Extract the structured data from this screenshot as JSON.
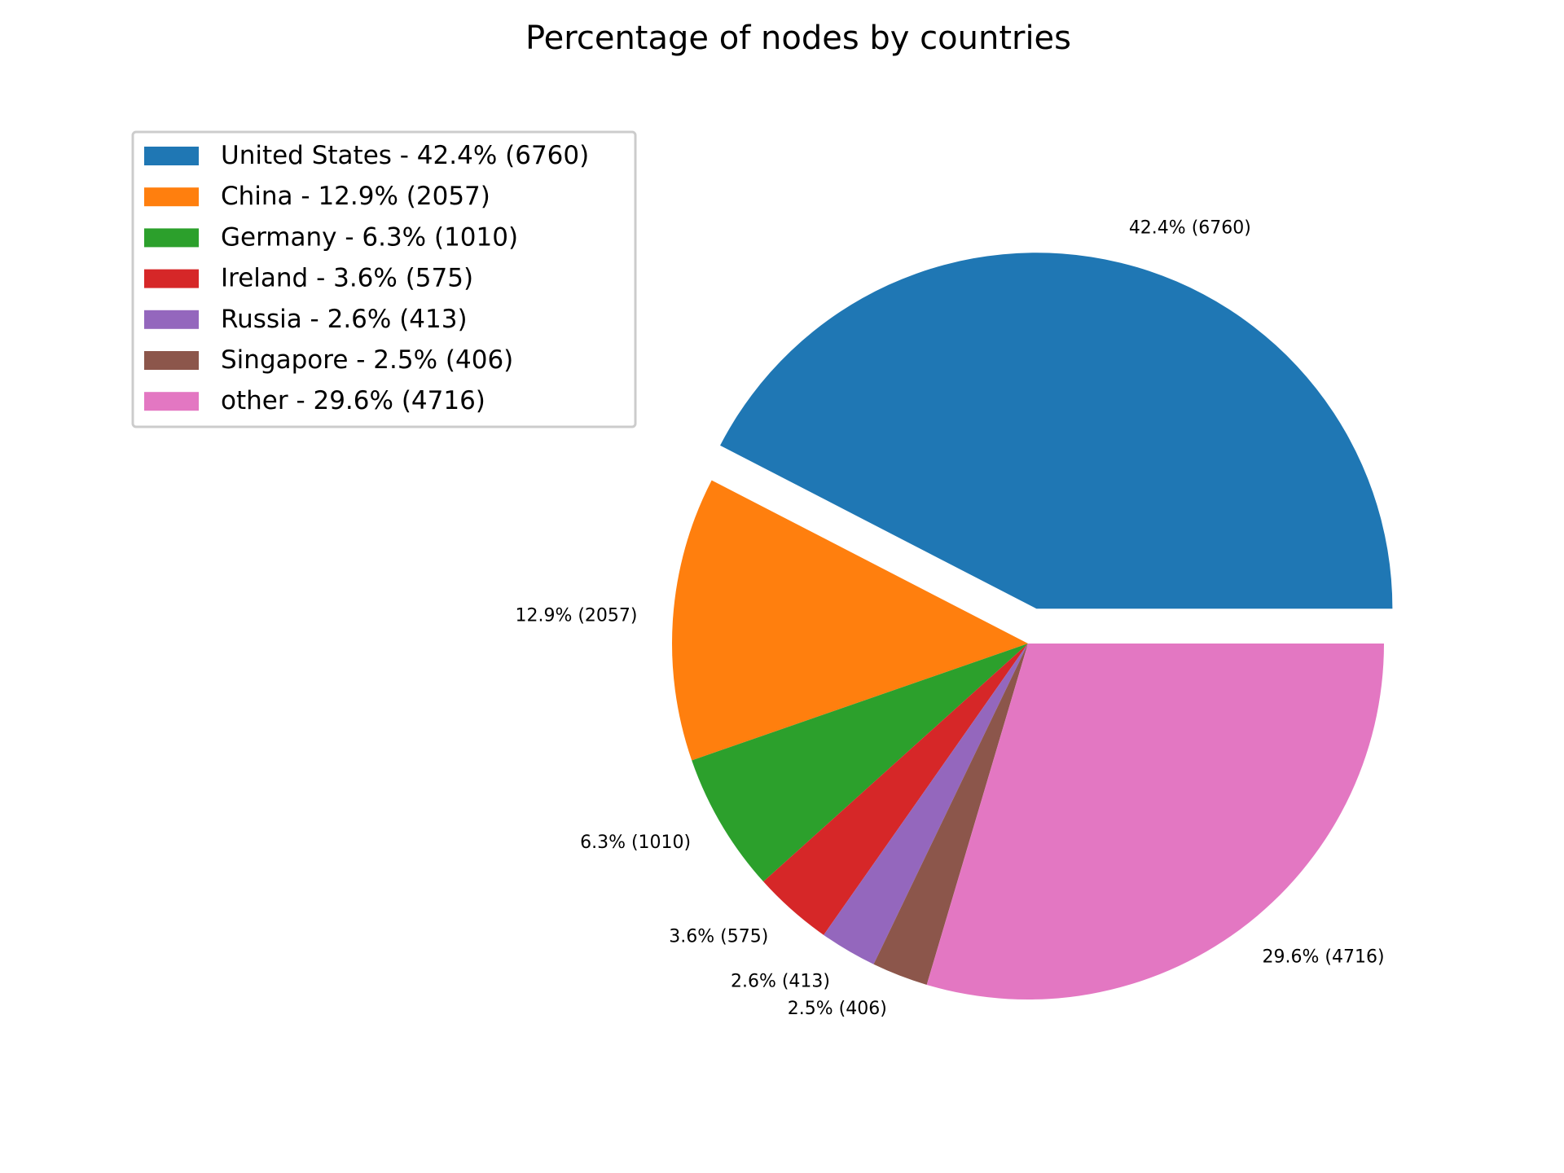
{
  "chart_data": {
    "type": "pie",
    "title": "Percentage of nodes by countries",
    "start_angle_deg": 0,
    "direction": "counterclockwise",
    "exploded": [
      "United States"
    ],
    "legend_position": "upper-left",
    "slices": [
      {
        "name": "United States",
        "value": 6760,
        "percent": 42.4,
        "color": "#1f77b4",
        "legend_label": "United States - 42.4% (6760)",
        "data_label": "42.4% (6760)"
      },
      {
        "name": "China",
        "value": 2057,
        "percent": 12.9,
        "color": "#ff7f0e",
        "legend_label": "China - 12.9% (2057)",
        "data_label": "12.9% (2057)"
      },
      {
        "name": "Germany",
        "value": 1010,
        "percent": 6.3,
        "color": "#2ca02c",
        "legend_label": "Germany - 6.3% (1010)",
        "data_label": "6.3% (1010)"
      },
      {
        "name": "Ireland",
        "value": 575,
        "percent": 3.6,
        "color": "#d62728",
        "legend_label": "Ireland - 3.6% (575)",
        "data_label": "3.6% (575)"
      },
      {
        "name": "Russia",
        "value": 413,
        "percent": 2.6,
        "color": "#9467bd",
        "legend_label": "Russia - 2.6% (413)",
        "data_label": "2.6% (413)"
      },
      {
        "name": "Singapore",
        "value": 406,
        "percent": 2.5,
        "color": "#8c564b",
        "legend_label": "Singapore - 2.5% (406)",
        "data_label": "2.5% (406)"
      },
      {
        "name": "other",
        "value": 4716,
        "percent": 29.6,
        "color": "#e377c2",
        "legend_label": "other - 29.6% (4716)",
        "data_label": "29.6% (4716)"
      }
    ]
  }
}
